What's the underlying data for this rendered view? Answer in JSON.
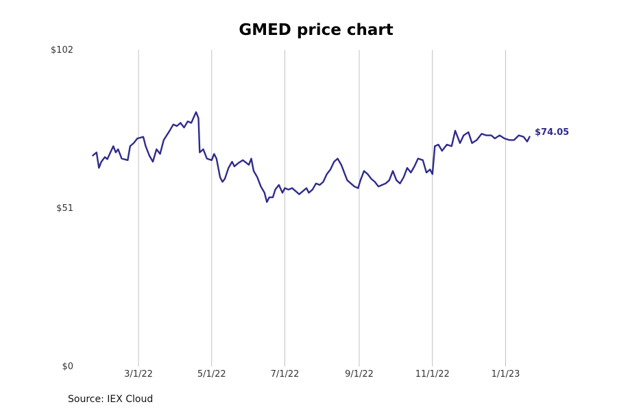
{
  "chart_data": {
    "type": "line",
    "title": "GMED price chart",
    "source": "Source: IEX Cloud",
    "last_label": "$74.05",
    "line_color": "#2e2a8c",
    "grid": {
      "x": true,
      "y": false,
      "color": "#c0c0c0"
    },
    "ylim": [
      0,
      102
    ],
    "ytick_labels": [
      {
        "value": 0,
        "label": "$0"
      },
      {
        "value": 51,
        "label": "$51"
      },
      {
        "value": 102,
        "label": "$102"
      }
    ],
    "xlim": [
      "2022-01-12",
      "2023-02-16"
    ],
    "xtick_labels": [
      {
        "date": "2022-03-01",
        "label": "3/1/22"
      },
      {
        "date": "2022-05-01",
        "label": "5/1/22"
      },
      {
        "date": "2022-07-01",
        "label": "7/1/22"
      },
      {
        "date": "2022-09-01",
        "label": "9/1/22"
      },
      {
        "date": "2022-11-01",
        "label": "11/1/22"
      },
      {
        "date": "2023-01-01",
        "label": "1/1/23"
      }
    ],
    "series": [
      {
        "points": [
          [
            "2022-01-22",
            68.0
          ],
          [
            "2022-01-25",
            69.0
          ],
          [
            "2022-01-27",
            64.0
          ],
          [
            "2022-01-29",
            66.0
          ],
          [
            "2022-02-01",
            67.5
          ],
          [
            "2022-02-03",
            66.8
          ],
          [
            "2022-02-05",
            68.5
          ],
          [
            "2022-02-08",
            71.0
          ],
          [
            "2022-02-10",
            69.0
          ],
          [
            "2022-02-12",
            70.0
          ],
          [
            "2022-02-15",
            67.0
          ],
          [
            "2022-02-20",
            66.5
          ],
          [
            "2022-02-22",
            71.0
          ],
          [
            "2022-02-25",
            72.0
          ],
          [
            "2022-02-28",
            73.5
          ],
          [
            "2022-03-05",
            74.0
          ],
          [
            "2022-03-07",
            71.0
          ],
          [
            "2022-03-10",
            68.0
          ],
          [
            "2022-03-13",
            66.0
          ],
          [
            "2022-03-16",
            70.0
          ],
          [
            "2022-03-19",
            68.5
          ],
          [
            "2022-03-22",
            73.0
          ],
          [
            "2022-03-27",
            76.0
          ],
          [
            "2022-03-30",
            78.0
          ],
          [
            "2022-04-02",
            77.5
          ],
          [
            "2022-04-05",
            78.5
          ],
          [
            "2022-04-08",
            77.0
          ],
          [
            "2022-04-11",
            79.0
          ],
          [
            "2022-04-14",
            78.5
          ],
          [
            "2022-04-18",
            82.0
          ],
          [
            "2022-04-20",
            80.0
          ],
          [
            "2022-04-21",
            69.0
          ],
          [
            "2022-04-24",
            70.0
          ],
          [
            "2022-04-27",
            67.0
          ],
          [
            "2022-05-01",
            66.5
          ],
          [
            "2022-05-03",
            68.5
          ],
          [
            "2022-05-05",
            67.0
          ],
          [
            "2022-05-08",
            61.0
          ],
          [
            "2022-05-10",
            59.5
          ],
          [
            "2022-05-12",
            60.5
          ],
          [
            "2022-05-15",
            64.0
          ],
          [
            "2022-05-18",
            66.0
          ],
          [
            "2022-05-20",
            64.5
          ],
          [
            "2022-05-23",
            65.5
          ],
          [
            "2022-05-27",
            66.5
          ],
          [
            "2022-06-01",
            65.0
          ],
          [
            "2022-06-03",
            67.0
          ],
          [
            "2022-06-05",
            63.0
          ],
          [
            "2022-06-08",
            61.0
          ],
          [
            "2022-06-11",
            58.0
          ],
          [
            "2022-06-14",
            56.0
          ],
          [
            "2022-06-16",
            53.0
          ],
          [
            "2022-06-18",
            54.5
          ],
          [
            "2022-06-21",
            54.5
          ],
          [
            "2022-06-23",
            57.0
          ],
          [
            "2022-06-26",
            58.5
          ],
          [
            "2022-06-29",
            56.0
          ],
          [
            "2022-07-01",
            57.5
          ],
          [
            "2022-07-04",
            57.0
          ],
          [
            "2022-07-07",
            57.5
          ],
          [
            "2022-07-10",
            56.5
          ],
          [
            "2022-07-13",
            55.5
          ],
          [
            "2022-07-16",
            56.5
          ],
          [
            "2022-07-19",
            57.5
          ],
          [
            "2022-07-21",
            56.0
          ],
          [
            "2022-07-24",
            57.0
          ],
          [
            "2022-07-27",
            59.0
          ],
          [
            "2022-07-30",
            58.5
          ],
          [
            "2022-08-02",
            59.5
          ],
          [
            "2022-08-05",
            62.0
          ],
          [
            "2022-08-08",
            63.5
          ],
          [
            "2022-08-11",
            66.0
          ],
          [
            "2022-08-14",
            67.0
          ],
          [
            "2022-08-17",
            65.0
          ],
          [
            "2022-08-20",
            62.0
          ],
          [
            "2022-08-22",
            60.0
          ],
          [
            "2022-08-25",
            59.0
          ],
          [
            "2022-08-28",
            58.0
          ],
          [
            "2022-08-31",
            57.5
          ],
          [
            "2022-09-02",
            60.0
          ],
          [
            "2022-09-05",
            63.0
          ],
          [
            "2022-09-08",
            62.0
          ],
          [
            "2022-09-11",
            60.5
          ],
          [
            "2022-09-14",
            59.5
          ],
          [
            "2022-09-17",
            58.0
          ],
          [
            "2022-09-20",
            58.5
          ],
          [
            "2022-09-23",
            59.0
          ],
          [
            "2022-09-26",
            60.0
          ],
          [
            "2022-09-29",
            63.0
          ],
          [
            "2022-10-02",
            60.0
          ],
          [
            "2022-10-05",
            59.0
          ],
          [
            "2022-10-08",
            61.0
          ],
          [
            "2022-10-11",
            64.0
          ],
          [
            "2022-10-14",
            62.5
          ],
          [
            "2022-10-17",
            64.5
          ],
          [
            "2022-10-20",
            67.0
          ],
          [
            "2022-10-24",
            66.5
          ],
          [
            "2022-10-27",
            62.5
          ],
          [
            "2022-10-30",
            63.5
          ],
          [
            "2022-11-01",
            62.0
          ],
          [
            "2022-11-03",
            71.0
          ],
          [
            "2022-11-06",
            71.5
          ],
          [
            "2022-11-09",
            69.5
          ],
          [
            "2022-11-13",
            71.5
          ],
          [
            "2022-11-17",
            71.0
          ],
          [
            "2022-11-20",
            76.0
          ],
          [
            "2022-11-24",
            72.0
          ],
          [
            "2022-11-27",
            74.5
          ],
          [
            "2022-12-01",
            75.5
          ],
          [
            "2022-12-04",
            72.0
          ],
          [
            "2022-12-08",
            73.0
          ],
          [
            "2022-12-12",
            75.0
          ],
          [
            "2022-12-16",
            74.5
          ],
          [
            "2022-12-20",
            74.5
          ],
          [
            "2022-12-23",
            73.5
          ],
          [
            "2022-12-27",
            74.5
          ],
          [
            "2022-12-31",
            73.5
          ],
          [
            "2023-01-04",
            73.0
          ],
          [
            "2023-01-08",
            73.0
          ],
          [
            "2023-01-12",
            74.5
          ],
          [
            "2023-01-16",
            74.0
          ],
          [
            "2023-01-19",
            72.5
          ],
          [
            "2023-01-21",
            74.05
          ]
        ]
      }
    ]
  }
}
